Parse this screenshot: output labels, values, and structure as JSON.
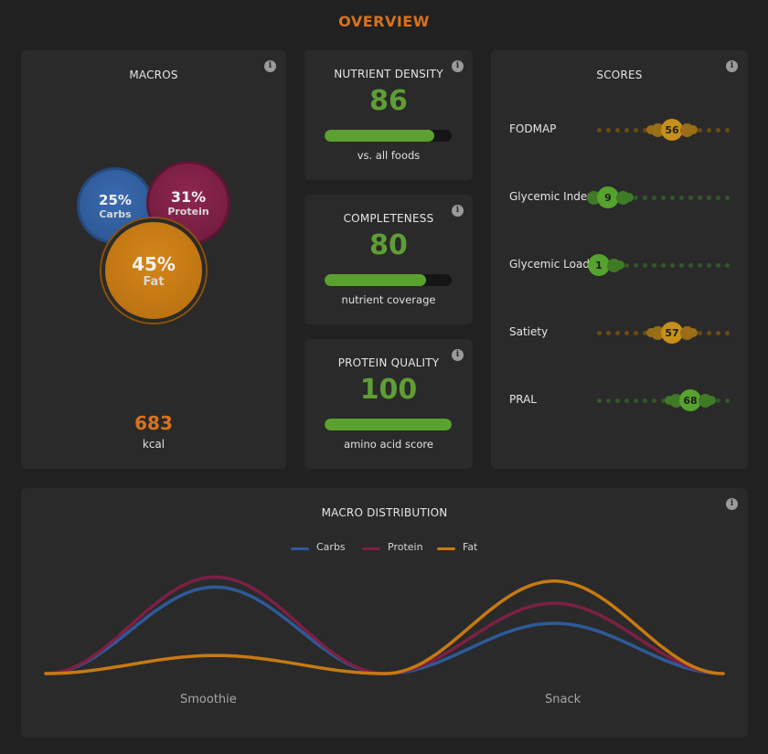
{
  "page_title": "OVERVIEW",
  "macros": {
    "title": "MACROS",
    "carbs": {
      "pct": "25%",
      "label": "Carbs",
      "color": "#2d5a99"
    },
    "protein": {
      "pct": "31%",
      "label": "Protein",
      "color": "#7d1f44"
    },
    "fat": {
      "pct": "45%",
      "label": "Fat",
      "color": "#c77a12"
    },
    "kcal_value": "683",
    "kcal_unit": "kcal"
  },
  "nutrient_density": {
    "title": "NUTRIENT DENSITY",
    "value": "86",
    "fraction": 0.86,
    "caption": "vs. all foods"
  },
  "completeness": {
    "title": "COMPLETENESS",
    "value": "80",
    "fraction": 0.8,
    "caption": "nutrient coverage"
  },
  "protein_quality": {
    "title": "PROTEIN QUALITY",
    "value": "100",
    "fraction": 1.0,
    "caption": "amino acid score"
  },
  "scores": {
    "title": "SCORES",
    "rows": [
      {
        "label": "FODMAP",
        "value": "56",
        "level": 0.56,
        "color": "orange"
      },
      {
        "label": "Glycemic Index",
        "value": "9",
        "level": 0.09,
        "color": "green"
      },
      {
        "label": "Glycemic Load",
        "value": "1",
        "level": 0.01,
        "color": "green"
      },
      {
        "label": "Satiety",
        "value": "57",
        "level": 0.57,
        "color": "orange"
      },
      {
        "label": "PRAL",
        "value": "68",
        "level": 0.68,
        "color": "green"
      }
    ]
  },
  "macro_distribution": {
    "title": "MACRO DISTRIBUTION",
    "chart_data": {
      "type": "line",
      "categories": [
        "Smoothie",
        "Snack"
      ],
      "series": [
        {
          "name": "Carbs",
          "values": [
            43,
            25
          ],
          "color": "#2d5a99"
        },
        {
          "name": "Protein",
          "values": [
            48,
            35
          ],
          "color": "#7d1f44"
        },
        {
          "name": "Fat",
          "values": [
            9,
            46
          ],
          "color": "#c77a12"
        }
      ]
    }
  }
}
